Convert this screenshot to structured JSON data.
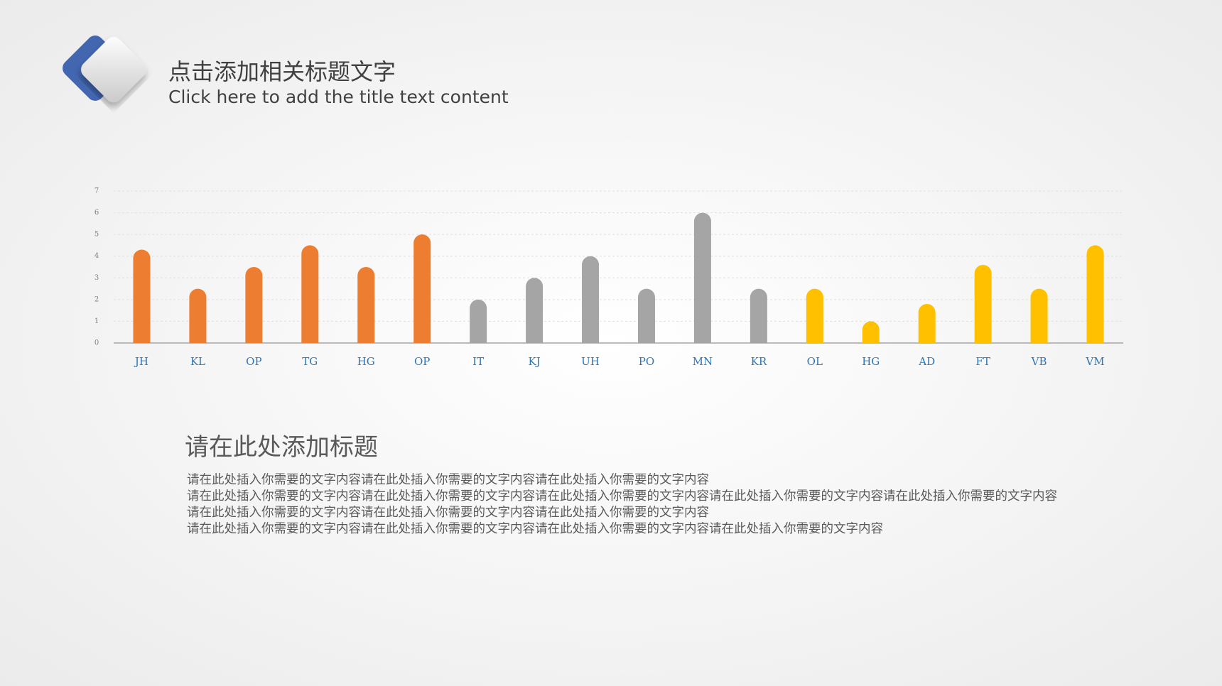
{
  "header": {
    "title": "点击添加相关标题文字",
    "subtitle": "Click here to add the title text content"
  },
  "chart_data": {
    "type": "bar",
    "categories": [
      "JH",
      "KL",
      "OP",
      "TG",
      "HG",
      "OP",
      "IT",
      "KJ",
      "UH",
      "PO",
      "MN",
      "KR",
      "OL",
      "HG",
      "AD",
      "FT",
      "VB",
      "VM"
    ],
    "values": [
      4.3,
      2.5,
      3.5,
      4.5,
      3.5,
      5.0,
      2.0,
      3.0,
      4.0,
      2.5,
      6.0,
      2.5,
      2.5,
      1.0,
      1.8,
      3.6,
      2.5,
      4.5
    ],
    "colors": [
      "#ed7d31",
      "#ed7d31",
      "#ed7d31",
      "#ed7d31",
      "#ed7d31",
      "#ed7d31",
      "#a5a5a5",
      "#a5a5a5",
      "#a5a5a5",
      "#a5a5a5",
      "#a5a5a5",
      "#a5a5a5",
      "#ffc000",
      "#ffc000",
      "#ffc000",
      "#ffc000",
      "#ffc000",
      "#ffc000"
    ],
    "ylim": [
      0,
      7
    ],
    "yticks": [
      0,
      1,
      2,
      3,
      4,
      5,
      6,
      7
    ],
    "grid": true
  },
  "body": {
    "title": "请在此处添加标题",
    "paragraphs": [
      "请在此处插入你需要的文字内容请在此处插入你需要的文字内容请在此处插入你需要的文字内容",
      "请在此处插入你需要的文字内容请在此处插入你需要的文字内容请在此处插入你需要的文字内容请在此处插入你需要的文字内容请在此处插入你需要的文字内容请在此处插入你需要的文字内容请在此处插入你需要的文字内容请在此处插入你需要的文字内容",
      "请在此处插入你需要的文字内容请在此处插入你需要的文字内容请在此处插入你需要的文字内容请在此处插入你需要的文字内容"
    ]
  }
}
